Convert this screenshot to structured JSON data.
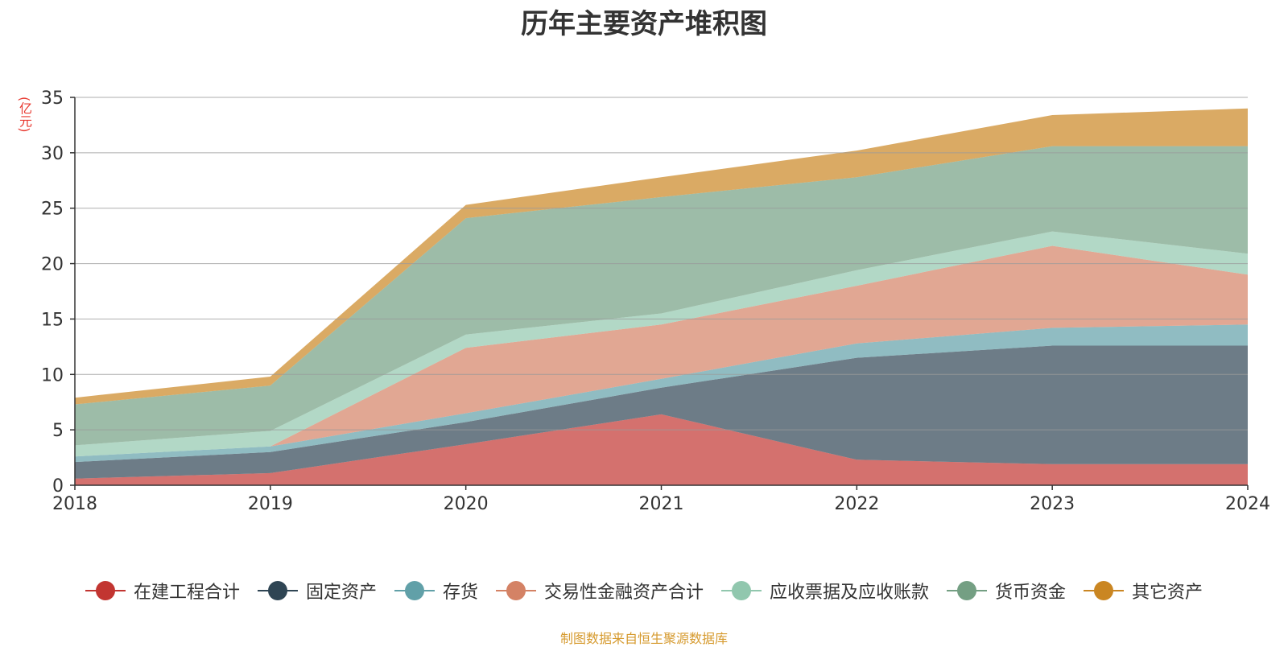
{
  "title": "历年主要资产堆积图",
  "unit_label": "(亿元)",
  "source_note": "制图数据来自恒生聚源数据库",
  "chart_data": {
    "type": "area",
    "stacked": true,
    "title": "历年主要资产堆积图",
    "ylabel": "(亿元)",
    "ylim": [
      0,
      35
    ],
    "yticks": [
      0,
      5,
      10,
      15,
      20,
      25,
      30,
      35
    ],
    "categories": [
      "2018",
      "2019",
      "2020",
      "2021",
      "2022",
      "2023",
      "2024"
    ],
    "grid": true,
    "legend_position": "bottom",
    "series": [
      {
        "name": "在建工程合计",
        "color": "#c23531",
        "values": [
          0.6,
          1.1,
          3.7,
          6.4,
          2.3,
          1.9,
          1.9
        ]
      },
      {
        "name": "固定资产",
        "color": "#2f4554",
        "values": [
          1.5,
          1.9,
          2.0,
          2.4,
          9.2,
          10.7,
          10.7
        ]
      },
      {
        "name": "存货",
        "color": "#61a0a8",
        "values": [
          0.5,
          0.5,
          0.8,
          0.8,
          1.3,
          1.6,
          1.9
        ]
      },
      {
        "name": "交易性金融资产合计",
        "color": "#d48265",
        "values": [
          0.0,
          0.0,
          5.9,
          4.9,
          5.2,
          7.4,
          4.5
        ]
      },
      {
        "name": "应收票据及应收账款",
        "color": "#91c7ae",
        "values": [
          1.0,
          1.4,
          1.2,
          1.0,
          1.4,
          1.3,
          1.9
        ]
      },
      {
        "name": "货币资金",
        "color": "#749f83",
        "values": [
          3.7,
          4.1,
          10.5,
          10.5,
          8.4,
          7.7,
          9.7
        ]
      },
      {
        "name": "其它资产",
        "color": "#ca8622",
        "values": [
          0.6,
          0.8,
          1.2,
          1.8,
          2.4,
          2.8,
          3.4
        ]
      }
    ]
  }
}
